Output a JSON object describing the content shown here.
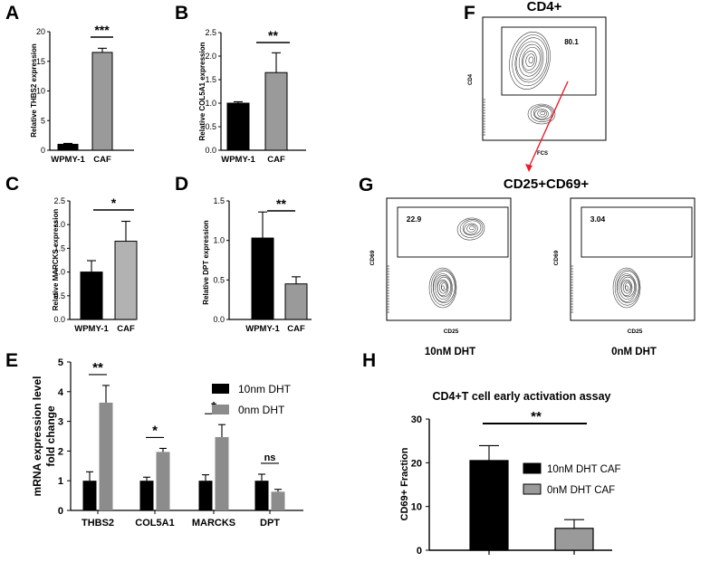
{
  "panels": {
    "A": "A",
    "B": "B",
    "C": "C",
    "D": "D",
    "E": "E",
    "F": "F",
    "G": "G",
    "H": "H"
  },
  "flow": {
    "cd4_gate": {
      "title": "CD4+",
      "gate_value": "80.1",
      "x_label": "FCS",
      "y_label": "CD4"
    },
    "cd25_cd69": {
      "title": "CD25+CD69+",
      "plots": [
        {
          "gate_value": "22.9",
          "x_label": "CD25",
          "y_label": "CD69",
          "condition": "10nM DHT"
        },
        {
          "gate_value": "3.04",
          "x_label": "CD25",
          "y_label": "CD69",
          "condition": "0nM DHT"
        }
      ]
    },
    "arrow_color": "#e8202a"
  },
  "chart_data": [
    {
      "panel": "A",
      "type": "bar",
      "categories": [
        "WPMY-1",
        "CAF"
      ],
      "values": [
        1.0,
        16.5
      ],
      "errors": [
        0.15,
        0.7
      ],
      "colors": [
        "#000000",
        "#9a9a9a"
      ],
      "ylabel": "Relative THBS2 expression",
      "ylim": [
        0,
        20
      ],
      "yticks": [
        "0",
        "5",
        "10",
        "15",
        "20"
      ],
      "significance": "***"
    },
    {
      "panel": "B",
      "type": "bar",
      "categories": [
        "WPMY-1",
        "CAF"
      ],
      "values": [
        1.0,
        1.65
      ],
      "errors": [
        0.03,
        0.42
      ],
      "colors": [
        "#000000",
        "#9a9a9a"
      ],
      "ylabel": "Relative COL5A1 expression",
      "ylim": [
        0,
        2.5
      ],
      "yticks": [
        "0.0",
        "0.5",
        "1.0",
        "1.5",
        "2.0",
        "2.5"
      ],
      "significance": "**"
    },
    {
      "panel": "C",
      "type": "bar",
      "categories": [
        "WPMY-1",
        "CAF"
      ],
      "values": [
        1.0,
        1.65
      ],
      "errors": [
        0.24,
        0.42
      ],
      "colors": [
        "#000000",
        "#b2b2b2"
      ],
      "ylabel": "Relative MARCKS expression",
      "ylim": [
        0,
        2.5
      ],
      "yticks": [
        "0.0",
        "0.5",
        "1.0",
        "1.5",
        "2.0",
        "2.5"
      ],
      "significance": "*"
    },
    {
      "panel": "D",
      "type": "bar",
      "categories": [
        "WPMY-1",
        "CAF"
      ],
      "values": [
        1.03,
        0.45
      ],
      "errors": [
        0.33,
        0.09
      ],
      "colors": [
        "#000000",
        "#9a9a9a"
      ],
      "ylabel": "Relative DPT expression",
      "ylim": [
        0,
        1.5
      ],
      "yticks": [
        "0.0",
        "0.5",
        "1.0",
        "1.5"
      ],
      "significance": "**"
    },
    {
      "panel": "E",
      "type": "bar",
      "categories": [
        "THBS2",
        "COL5A1",
        "MARCKS",
        "DPT"
      ],
      "series": [
        {
          "name": "10nm DHT",
          "color": "#000000",
          "values": [
            1.0,
            1.0,
            1.0,
            1.0
          ],
          "errors": [
            0.3,
            0.12,
            0.2,
            0.22
          ]
        },
        {
          "name": "0nm DHT",
          "color": "#8c8c8c",
          "values": [
            3.63,
            1.97,
            2.47,
            0.63
          ],
          "errors": [
            0.58,
            0.12,
            0.42,
            0.08
          ]
        }
      ],
      "ylabel_lines": [
        "mRNA expression level",
        "fold change"
      ],
      "ylim": [
        0,
        5
      ],
      "yticks": [
        "0",
        "1",
        "2",
        "3",
        "4",
        "5"
      ],
      "significance": [
        "**",
        "*",
        "*",
        "ns"
      ],
      "legend": "top-right"
    },
    {
      "panel": "H",
      "type": "bar",
      "title": "CD4+T cell early activation assay",
      "categories": [
        "10nM DHT CAF",
        "0nM DHT CAF"
      ],
      "values": [
        20.5,
        5.0
      ],
      "errors": [
        3.4,
        2.0
      ],
      "colors": [
        "#000000",
        "#9a9a9a"
      ],
      "ylabel": "CD69+ Fraction",
      "ylim": [
        0,
        30
      ],
      "yticks": [
        "0",
        "10",
        "20",
        "30"
      ],
      "significance": "**",
      "legend": "right"
    }
  ]
}
